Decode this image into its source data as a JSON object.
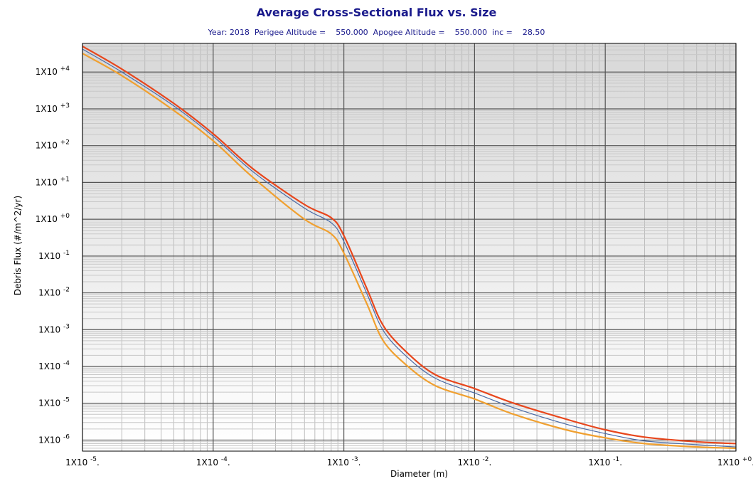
{
  "chart_data": {
    "type": "line",
    "title": "Average Cross-Sectional Flux vs. Size",
    "subtitle": "Year: 2018  Perigee Altitude =    550.000  Apogee Altitude =    550.000  inc =    28.50",
    "xlabel": "Diameter (m)",
    "ylabel": "Debris Flux (#/m^2/yr)",
    "x_scale": "log",
    "y_scale": "log",
    "xlim": [
      1e-05,
      1
    ],
    "ylim": [
      5e-07,
      60000.0
    ],
    "grid": true,
    "x_ticks": [
      {
        "value": 1e-05,
        "base": "1X10",
        "exp": "-5",
        "tail": "."
      },
      {
        "value": 0.0001,
        "base": "1X10",
        "exp": "-4",
        "tail": "."
      },
      {
        "value": 0.001,
        "base": "1X10",
        "exp": "-3",
        "tail": "."
      },
      {
        "value": 0.01,
        "base": "1X10",
        "exp": "-2",
        "tail": "."
      },
      {
        "value": 0.1,
        "base": "1X10",
        "exp": "-1",
        "tail": "."
      },
      {
        "value": 1,
        "base": "1X10",
        "exp": "+0",
        "tail": "."
      }
    ],
    "y_ticks": [
      {
        "value": 10000.0,
        "base": "1X10",
        "exp": "+4"
      },
      {
        "value": 1000.0,
        "base": "1X10",
        "exp": "+3"
      },
      {
        "value": 100.0,
        "base": "1X10",
        "exp": "+2"
      },
      {
        "value": 10.0,
        "base": "1X10",
        "exp": "+1"
      },
      {
        "value": 1,
        "base": "1X10",
        "exp": "+0"
      },
      {
        "value": 0.1,
        "base": "1X10",
        "exp": "-1"
      },
      {
        "value": 0.01,
        "base": "1X10",
        "exp": "-2"
      },
      {
        "value": 0.001,
        "base": "1X10",
        "exp": "-3"
      },
      {
        "value": 0.0001,
        "base": "1X10",
        "exp": "-4"
      },
      {
        "value": 1e-05,
        "base": "1X10",
        "exp": "-5"
      },
      {
        "value": 1e-06,
        "base": "1X10",
        "exp": "-6"
      }
    ],
    "series": [
      {
        "color": "#e8461c",
        "x": [
          1e-05,
          2e-05,
          5e-05,
          0.0001,
          0.0002,
          0.0005,
          0.0008,
          0.001,
          0.0015,
          0.002,
          0.003,
          0.005,
          0.01,
          0.02,
          0.05,
          0.1,
          0.2,
          0.5,
          1
        ],
        "y": [
          50000.0,
          12000.0,
          1400.0,
          210.0,
          24.0,
          2.5,
          1.1,
          0.36,
          0.013,
          0.0013,
          0.00025,
          6e-05,
          2.5e-05,
          1e-05,
          3.7e-06,
          1.9e-06,
          1.2e-06,
          9e-07,
          8e-07
        ]
      },
      {
        "color": "#4a6aa5",
        "x": [
          1e-05,
          2e-05,
          5e-05,
          0.0001,
          0.0002,
          0.0005,
          0.0008,
          0.001,
          0.0015,
          0.002,
          0.003,
          0.005,
          0.01,
          0.02,
          0.05,
          0.1,
          0.2,
          0.5,
          1
        ],
        "y": [
          42000.0,
          10000.0,
          1200.0,
          180.0,
          20.0,
          2.0,
          0.8,
          0.25,
          0.0095,
          0.00095,
          0.00019,
          4.8e-05,
          1.9e-05,
          7.5e-06,
          2.7e-06,
          1.5e-06,
          9.5e-07,
          7.5e-07,
          6.5e-07
        ]
      },
      {
        "color": "#f0a030",
        "x": [
          1e-05,
          2e-05,
          5e-05,
          0.0001,
          0.0002,
          0.0005,
          0.0008,
          0.001,
          0.0015,
          0.002,
          0.003,
          0.005,
          0.01,
          0.02,
          0.05,
          0.1,
          0.2,
          0.5,
          1
        ],
        "y": [
          32000.0,
          8000.0,
          900.0,
          135.0,
          14.0,
          1.0,
          0.4,
          0.12,
          0.005,
          0.0005,
          0.00011,
          3e-05,
          1.3e-05,
          5e-06,
          1.9e-06,
          1.15e-06,
          8e-07,
          6.5e-07,
          6e-07
        ]
      }
    ]
  }
}
